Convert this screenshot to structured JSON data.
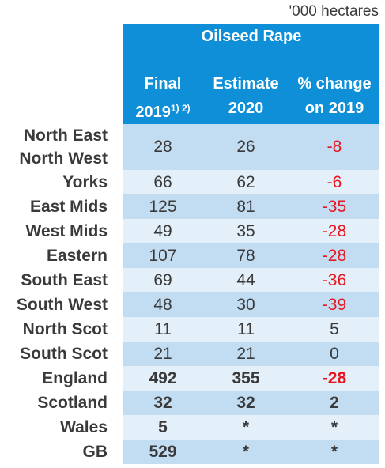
{
  "units": "'000 hectares",
  "crop_title": "Oilseed Rape",
  "columns": {
    "c1_line1": "Final",
    "c1_line2": "2019",
    "c1_sup": "1) 2)",
    "c2_line1": "Estimate",
    "c2_line2": "2020",
    "c3_line1": "% change",
    "c3_line2": "on 2019"
  },
  "rows": [
    {
      "label1": "North East",
      "label2": "North West",
      "final": "28",
      "estimate": "26",
      "change": "-8"
    },
    {
      "label1": "Yorks",
      "final": "66",
      "estimate": "62",
      "change": "-6"
    },
    {
      "label1": "East Mids",
      "final": "125",
      "estimate": "81",
      "change": "-35"
    },
    {
      "label1": "West Mids",
      "final": "49",
      "estimate": "35",
      "change": "-28"
    },
    {
      "label1": "Eastern",
      "final": "107",
      "estimate": "78",
      "change": "-28"
    },
    {
      "label1": "South East",
      "final": "69",
      "estimate": "44",
      "change": "-36"
    },
    {
      "label1": "South West",
      "final": "48",
      "estimate": "30",
      "change": "-39"
    },
    {
      "label1": "North Scot",
      "final": "11",
      "estimate": "11",
      "change": "5"
    },
    {
      "label1": "South Scot",
      "final": "21",
      "estimate": "21",
      "change": "0"
    },
    {
      "label1": "England",
      "final": "492",
      "estimate": "355",
      "change": "-28"
    },
    {
      "label1": "Scotland",
      "final": "32",
      "estimate": "32",
      "change": "2"
    },
    {
      "label1": "Wales",
      "final": "5",
      "estimate": "*",
      "change": "*"
    },
    {
      "label1": "GB",
      "final": "529",
      "estimate": "*",
      "change": "*"
    }
  ],
  "colors": {
    "header_bg": "#0e8fd8",
    "row_dark": "#c2dcf2",
    "row_light": "#e3eff9",
    "negative": "#e8141e"
  }
}
